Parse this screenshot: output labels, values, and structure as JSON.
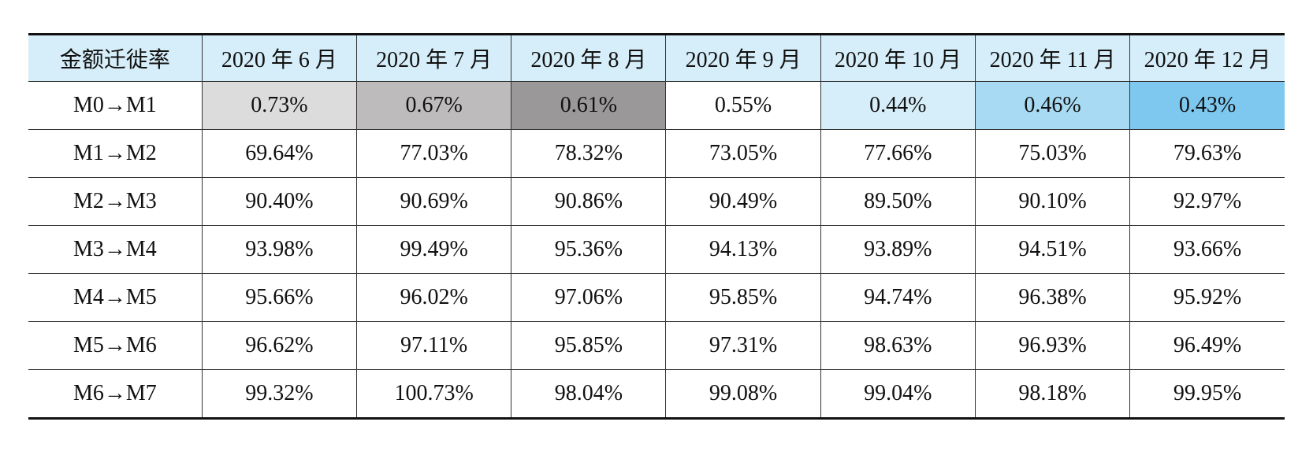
{
  "table": {
    "corner_label": "金额迁徙率",
    "columns": [
      "2020 年 6 月",
      "2020 年 7 月",
      "2020 年 8 月",
      "2020 年 9 月",
      "2020 年 10 月",
      "2020 年 11 月",
      "2020 年 12 月"
    ],
    "rows": [
      {
        "label": "M0→M1",
        "values": [
          "0.73%",
          "0.67%",
          "0.61%",
          "0.55%",
          "0.44%",
          "0.46%",
          "0.43%"
        ]
      },
      {
        "label": "M1→M2",
        "values": [
          "69.64%",
          "77.03%",
          "78.32%",
          "73.05%",
          "77.66%",
          "75.03%",
          "79.63%"
        ]
      },
      {
        "label": "M2→M3",
        "values": [
          "90.40%",
          "90.69%",
          "90.86%",
          "90.49%",
          "89.50%",
          "90.10%",
          "92.97%"
        ]
      },
      {
        "label": "M3→M4",
        "values": [
          "93.98%",
          "99.49%",
          "95.36%",
          "94.13%",
          "93.89%",
          "94.51%",
          "93.66%"
        ]
      },
      {
        "label": "M4→M5",
        "values": [
          "95.66%",
          "96.02%",
          "97.06%",
          "95.85%",
          "94.74%",
          "96.38%",
          "95.92%"
        ]
      },
      {
        "label": "M5→M6",
        "values": [
          "96.62%",
          "97.11%",
          "95.85%",
          "97.31%",
          "98.63%",
          "96.93%",
          "96.49%"
        ]
      },
      {
        "label": "M6→M7",
        "values": [
          "99.32%",
          "100.73%",
          "98.04%",
          "99.08%",
          "99.04%",
          "98.18%",
          "99.95%"
        ]
      }
    ],
    "highlight_colors": {
      "header_bg": "#d6eef9",
      "first_row": [
        "#dcdcdc",
        "#bdbbbc",
        "#9a9899",
        "#ffffff",
        "#d6eef9",
        "#a8dbf3",
        "#7ec8ef"
      ]
    }
  }
}
